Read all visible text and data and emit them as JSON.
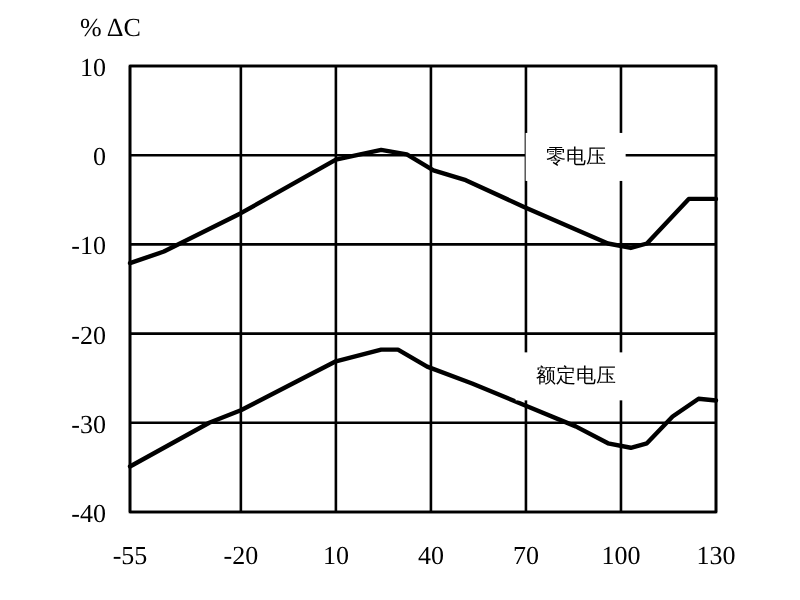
{
  "chart_data": {
    "type": "line",
    "ylabel": "% ΔC",
    "xlim": [
      -55,
      130
    ],
    "xticks": [
      -55,
      -20,
      10,
      40,
      70,
      100,
      130
    ],
    "ylim": [
      -40,
      10
    ],
    "yticks": [
      -40,
      -30,
      -20,
      -10,
      0,
      10
    ],
    "grid": true,
    "legend": false,
    "marker": "none",
    "line_style": "solid",
    "series": [
      {
        "name": "零电压",
        "color": "#000000",
        "x": [
          -55,
          -44.3,
          -20,
          10,
          24.3,
          32.4,
          40.8,
          51,
          69.4,
          95.9,
          103.1,
          108.2,
          121.4,
          130
        ],
        "values": [
          -12.1,
          -10.8,
          -6.5,
          -0.5,
          0.6,
          0.1,
          -1.7,
          -2.8,
          -5.8,
          -9.9,
          -10.4,
          -9.9,
          -4.9,
          -4.9
        ]
      },
      {
        "name": "额定电压",
        "color": "#000000",
        "x": [
          -55,
          -30,
          -20,
          10,
          24.3,
          29.6,
          38.8,
          53,
          69.4,
          85.7,
          95.9,
          103.1,
          108.2,
          116.3,
          124.5,
          130
        ],
        "values": [
          -34.9,
          -30,
          -28.6,
          -23.1,
          -21.8,
          -21.8,
          -23.7,
          -25.6,
          -28.0,
          -30.4,
          -32.3,
          -32.8,
          -32.3,
          -29.3,
          -27.3,
          -27.5
        ]
      }
    ]
  }
}
